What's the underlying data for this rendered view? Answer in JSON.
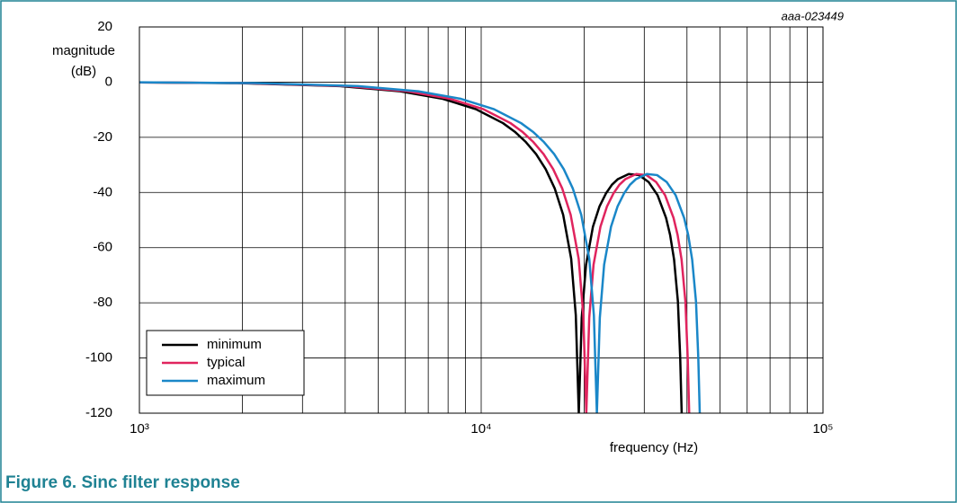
{
  "chart_data": {
    "type": "line",
    "title": "Figure 6.  Sinc filter response",
    "figure_id": "aaa-023449",
    "xlabel": "frequency (Hz)",
    "ylabel": "magnitude (dB)",
    "xscale": "log",
    "xlim": [
      1000,
      100000
    ],
    "ylim": [
      -120,
      20
    ],
    "xticks": [
      {
        "value": 1000,
        "label": "10³"
      },
      {
        "value": 10000,
        "label": "10⁴"
      },
      {
        "value": 100000,
        "label": "10⁵"
      }
    ],
    "xminor_ticks": [
      2000,
      3000,
      4000,
      5000,
      6000,
      7000,
      8000,
      9000,
      20000,
      30000,
      40000,
      50000,
      60000,
      70000,
      80000,
      90000
    ],
    "yticks": [
      20,
      0,
      -20,
      -40,
      -60,
      -80,
      -100,
      -120
    ],
    "grid": true,
    "legend": "lower left",
    "series": [
      {
        "name": "minimum",
        "color": "#000000",
        "x": [
          1000,
          1930,
          3860,
          5790,
          7720,
          9650,
          11580,
          12545,
          13510,
          14475,
          15440,
          16405,
          17370,
          18335,
          18914,
          19300,
          19686,
          20265,
          21230,
          22195,
          23160,
          24125,
          25090,
          27020,
          28950,
          30880,
          32810,
          34740,
          35705,
          36670,
          37635,
          38214,
          38600
        ],
        "values": [
          -0.1,
          -0.36,
          -1.45,
          -3.32,
          -6.05,
          -9.81,
          -14.86,
          -18.0,
          -21.72,
          -26.1,
          -31.55,
          -38.5,
          -48.07,
          -64.03,
          -84.5,
          -120,
          -85.4,
          -66.2,
          -52.4,
          -45.0,
          -40.4,
          -37.2,
          -35.2,
          -33.3,
          -33.7,
          -36.2,
          -41.0,
          -49.2,
          -55.4,
          -64.3,
          -79.6,
          -99.8,
          -120
        ]
      },
      {
        "name": "typical",
        "color": "#e0245e",
        "x": [
          1000,
          2030,
          4060,
          6090,
          8120,
          10150,
          12180,
          13195,
          14210,
          15225,
          16240,
          17255,
          18270,
          19285,
          19894,
          20300,
          20706,
          21315,
          22330,
          23345,
          24360,
          25375,
          26390,
          28420,
          30450,
          32480,
          34510,
          36540,
          37555,
          38570,
          39585,
          40194,
          40600
        ],
        "values": [
          -0.09,
          -0.36,
          -1.45,
          -3.32,
          -6.05,
          -9.81,
          -14.86,
          -18.0,
          -21.72,
          -26.1,
          -31.55,
          -38.5,
          -48.07,
          -64.03,
          -84.5,
          -120,
          -85.4,
          -66.2,
          -52.4,
          -45.0,
          -40.4,
          -37.2,
          -35.2,
          -33.3,
          -33.7,
          -36.2,
          -41.0,
          -49.2,
          -55.4,
          -64.3,
          -79.6,
          -99.8,
          -120
        ]
      },
      {
        "name": "maximum",
        "color": "#1a87c8",
        "x": [
          1000,
          2180,
          4360,
          6540,
          8720,
          10900,
          13080,
          14170,
          15260,
          16350,
          17440,
          18530,
          19620,
          20710,
          21364,
          21800,
          22236,
          22890,
          23980,
          25070,
          26160,
          27250,
          28340,
          30520,
          32700,
          34880,
          37060,
          39240,
          40330,
          41420,
          42510,
          43164,
          43600
        ],
        "values": [
          -0.08,
          -0.36,
          -1.45,
          -3.32,
          -6.05,
          -9.81,
          -14.86,
          -18.0,
          -21.72,
          -26.1,
          -31.55,
          -38.5,
          -48.07,
          -64.03,
          -84.5,
          -120,
          -85.4,
          -66.2,
          -52.4,
          -45.0,
          -40.4,
          -37.2,
          -35.2,
          -33.3,
          -33.7,
          -36.2,
          -41.0,
          -49.2,
          -55.4,
          -64.3,
          -79.6,
          -99.8,
          -120
        ]
      }
    ]
  }
}
